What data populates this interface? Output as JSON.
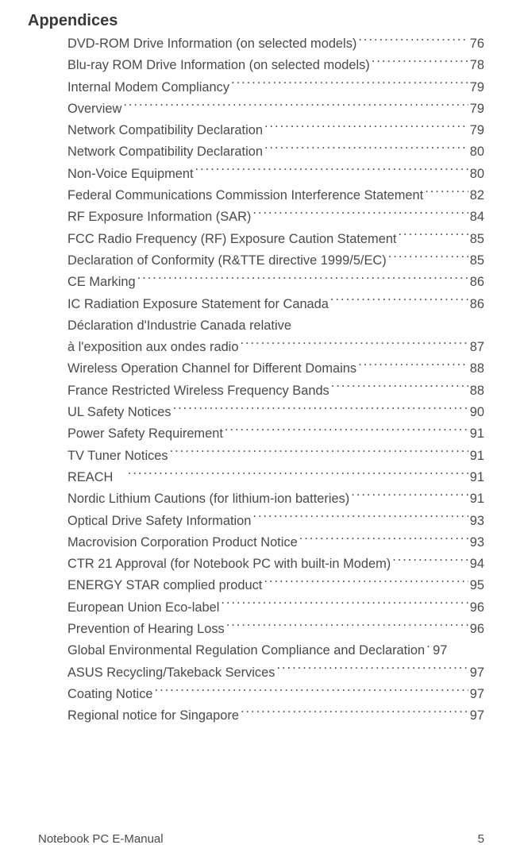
{
  "section_title": "Appendices",
  "entries": [
    {
      "title": "DVD-ROM Drive Information (on selected models)",
      "page": "76"
    },
    {
      "title": "Blu-ray ROM Drive Information (on selected models)",
      "page": "78"
    },
    {
      "title": "Internal Modem Compliancy",
      "page": "79"
    },
    {
      "title": "Overview",
      "page": "79"
    },
    {
      "title": "Network Compatibility Declaration",
      "page": "79"
    },
    {
      "title": "Network Compatibility Declaration ",
      "page": "80"
    },
    {
      "title": "Non-Voice Equipment",
      "page": "80"
    },
    {
      "title": "Federal Communications Commission Interference Statement",
      "page": "82"
    },
    {
      "title": "RF Exposure Information (SAR)",
      "page": "84"
    },
    {
      "title": "FCC Radio Frequency (RF) Exposure Caution Statement",
      "page": "85"
    },
    {
      "title": "Declaration of Conformity (R&TTE directive 1999/5/EC)",
      "page": "85"
    },
    {
      "title": "CE Marking",
      "page": "86"
    },
    {
      "title": "IC Radiation Exposure Statement for Canada",
      "page": "86"
    },
    {
      "title_line1": "Déclaration d'Industrie Canada relative",
      "title_line2": "à l'exposition aux ondes radio ",
      "page": "87",
      "wrap": true
    },
    {
      "title": "Wireless Operation Channel for Different Domains",
      "page": "88"
    },
    {
      "title": "France Restricted Wireless Frequency Bands",
      "page": "88"
    },
    {
      "title": "UL Safety Notices",
      "page": "90"
    },
    {
      "title": "Power Safety Requirement",
      "page": "91"
    },
    {
      "title": "TV Tuner Notices",
      "page": "91"
    },
    {
      "title": "REACH ",
      "page": "91"
    },
    {
      "title": "Nordic Lithium Cautions (for lithium-ion batteries)",
      "page": "91"
    },
    {
      "title": "Optical Drive Safety Information",
      "page": "93"
    },
    {
      "title": "Macrovision Corporation Product Notice",
      "page": "93"
    },
    {
      "title": "CTR 21 Approval (for Notebook PC with built-in Modem)",
      "page": "94"
    },
    {
      "title": "ENERGY STAR complied product",
      "page": "95"
    },
    {
      "title": "European Union Eco-label",
      "page": "96"
    },
    {
      "title": "Prevention of Hearing Loss",
      "page": "96"
    },
    {
      "title": "Global Environmental Regulation Compliance and Declaration ",
      "page": "97",
      "tight": true
    },
    {
      "title": "ASUS Recycling/Takeback Services",
      "page": "97"
    },
    {
      "title": "Coating Notice",
      "page": "97"
    },
    {
      "title": "Regional notice for Singapore",
      "page": "97"
    }
  ],
  "footer": {
    "doc_title": "Notebook PC E-Manual",
    "page_number": "5"
  }
}
